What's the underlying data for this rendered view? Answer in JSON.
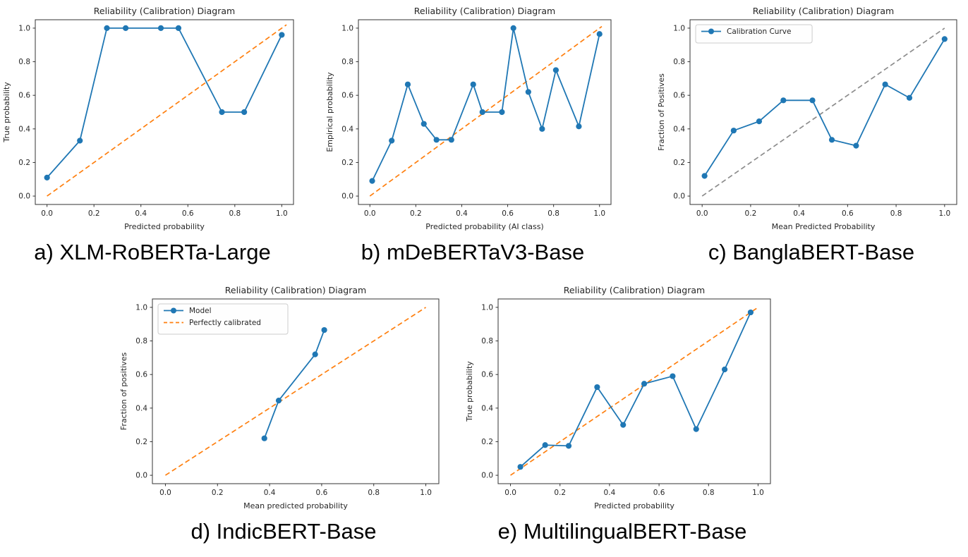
{
  "page": {
    "background": "#ffffff"
  },
  "colors": {
    "series_blue": "#1f77b4",
    "diagonal_orange": "#ff7f0e",
    "diagonal_gray": "#8c8c8c",
    "spine": "#333333",
    "text": "#262626"
  },
  "chart_data": [
    {
      "id": "a",
      "type": "line",
      "title": "Reliability (Calibration) Diagram",
      "xlabel": "Predicted probability",
      "ylabel": "True probability",
      "caption": "a) XLM-RoBERTa-Large",
      "xlim": [
        -0.05,
        1.05
      ],
      "ylim": [
        -0.05,
        1.05
      ],
      "xticks": [
        0.0,
        0.2,
        0.4,
        0.6,
        0.8,
        1.0
      ],
      "yticks": [
        0.0,
        0.2,
        0.4,
        0.6,
        0.8,
        1.0
      ],
      "grid": false,
      "legend": null,
      "diagonal": {
        "from": [
          0,
          0
        ],
        "to": [
          1.02,
          1.02
        ],
        "color": "#ff7f0e",
        "style": "dashed"
      },
      "series": [
        {
          "name": "calibration-curve",
          "color": "#1f77b4",
          "marker": "circle",
          "points": [
            [
              0.0,
              0.11
            ],
            [
              0.14,
              0.33
            ],
            [
              0.255,
              1.0
            ],
            [
              0.335,
              1.0
            ],
            [
              0.485,
              1.0
            ],
            [
              0.56,
              1.0
            ],
            [
              0.745,
              0.5
            ],
            [
              0.84,
              0.5
            ],
            [
              1.0,
              0.96
            ]
          ]
        }
      ]
    },
    {
      "id": "b",
      "type": "line",
      "title": "Reliability (Calibration) Diagram",
      "xlabel": "Predicted probability (AI class)",
      "ylabel": "Empirical probability",
      "caption": "b) mDeBERTaV3-Base",
      "xlim": [
        -0.05,
        1.05
      ],
      "ylim": [
        -0.05,
        1.05
      ],
      "xticks": [
        0.0,
        0.2,
        0.4,
        0.6,
        0.8,
        1.0
      ],
      "yticks": [
        0.0,
        0.2,
        0.4,
        0.6,
        0.8,
        1.0
      ],
      "grid": false,
      "legend": null,
      "diagonal": {
        "from": [
          0,
          0
        ],
        "to": [
          1.01,
          1.01
        ],
        "color": "#ff7f0e",
        "style": "dashed"
      },
      "series": [
        {
          "name": "calibration-curve",
          "color": "#1f77b4",
          "marker": "circle",
          "points": [
            [
              0.01,
              0.09
            ],
            [
              0.095,
              0.33
            ],
            [
              0.165,
              0.665
            ],
            [
              0.235,
              0.43
            ],
            [
              0.29,
              0.335
            ],
            [
              0.355,
              0.335
            ],
            [
              0.45,
              0.665
            ],
            [
              0.49,
              0.5
            ],
            [
              0.575,
              0.5
            ],
            [
              0.625,
              1.0
            ],
            [
              0.69,
              0.62
            ],
            [
              0.75,
              0.4
            ],
            [
              0.81,
              0.75
            ],
            [
              0.91,
              0.415
            ],
            [
              1.0,
              0.965
            ]
          ]
        }
      ]
    },
    {
      "id": "c",
      "type": "line",
      "title": "Reliability (Calibration) Diagram",
      "xlabel": "Mean Predicted Probability",
      "ylabel": "Fraction of Positives",
      "caption": "c) BanglaBERT-Base",
      "xlim": [
        -0.05,
        1.05
      ],
      "ylim": [
        -0.05,
        1.05
      ],
      "xticks": [
        0.0,
        0.2,
        0.4,
        0.6,
        0.8,
        1.0
      ],
      "yticks": [
        0.0,
        0.2,
        0.4,
        0.6,
        0.8,
        1.0
      ],
      "grid": false,
      "legend": {
        "position": "upper-left",
        "entries": [
          {
            "marker": "line-dot",
            "label": "Calibration Curve",
            "color": "#1f77b4"
          }
        ]
      },
      "diagonal": {
        "from": [
          0,
          0
        ],
        "to": [
          1.0,
          1.0
        ],
        "color": "#8c8c8c",
        "style": "dashed"
      },
      "series": [
        {
          "name": "calibration-curve",
          "color": "#1f77b4",
          "marker": "circle",
          "points": [
            [
              0.01,
              0.12
            ],
            [
              0.13,
              0.39
            ],
            [
              0.235,
              0.445
            ],
            [
              0.335,
              0.57
            ],
            [
              0.455,
              0.57
            ],
            [
              0.535,
              0.335
            ],
            [
              0.635,
              0.3
            ],
            [
              0.755,
              0.665
            ],
            [
              0.855,
              0.585
            ],
            [
              1.0,
              0.935
            ]
          ]
        }
      ]
    },
    {
      "id": "d",
      "type": "line",
      "title": "Reliability (Calibration) Diagram",
      "xlabel": "Mean predicted probability",
      "ylabel": "Fraction of positives",
      "caption": "d) IndicBERT-Base",
      "xlim": [
        -0.05,
        1.05
      ],
      "ylim": [
        -0.05,
        1.05
      ],
      "xticks": [
        0.0,
        0.2,
        0.4,
        0.6,
        0.8,
        1.0
      ],
      "yticks": [
        0.0,
        0.2,
        0.4,
        0.6,
        0.8,
        1.0
      ],
      "grid": false,
      "legend": {
        "position": "upper-left",
        "entries": [
          {
            "marker": "line-dot",
            "label": "Model",
            "color": "#1f77b4"
          },
          {
            "marker": "dashed",
            "label": "Perfectly calibrated",
            "color": "#ff7f0e"
          }
        ]
      },
      "diagonal": {
        "from": [
          0,
          0
        ],
        "to": [
          1.0,
          1.0
        ],
        "color": "#ff7f0e",
        "style": "dashed"
      },
      "series": [
        {
          "name": "model-curve",
          "color": "#1f77b4",
          "marker": "circle",
          "points": [
            [
              0.38,
              0.22
            ],
            [
              0.435,
              0.445
            ],
            [
              0.575,
              0.72
            ],
            [
              0.61,
              0.865
            ]
          ]
        }
      ]
    },
    {
      "id": "e",
      "type": "line",
      "title": "Reliability (Calibration) Diagram",
      "xlabel": "Predicted probability",
      "ylabel": "True probability",
      "caption": "e) MultilingualBERT-Base",
      "xlim": [
        -0.05,
        1.05
      ],
      "ylim": [
        -0.05,
        1.05
      ],
      "xticks": [
        0.0,
        0.2,
        0.4,
        0.6,
        0.8,
        1.0
      ],
      "yticks": [
        0.0,
        0.2,
        0.4,
        0.6,
        0.8,
        1.0
      ],
      "grid": false,
      "legend": null,
      "diagonal": {
        "from": [
          0,
          0
        ],
        "to": [
          1.0,
          1.0
        ],
        "color": "#ff7f0e",
        "style": "dashed"
      },
      "series": [
        {
          "name": "calibration-curve",
          "color": "#1f77b4",
          "marker": "circle",
          "points": [
            [
              0.04,
              0.05
            ],
            [
              0.14,
              0.18
            ],
            [
              0.235,
              0.175
            ],
            [
              0.35,
              0.525
            ],
            [
              0.455,
              0.3
            ],
            [
              0.54,
              0.545
            ],
            [
              0.655,
              0.59
            ],
            [
              0.75,
              0.275
            ],
            [
              0.865,
              0.63
            ],
            [
              0.97,
              0.97
            ]
          ]
        }
      ]
    }
  ]
}
